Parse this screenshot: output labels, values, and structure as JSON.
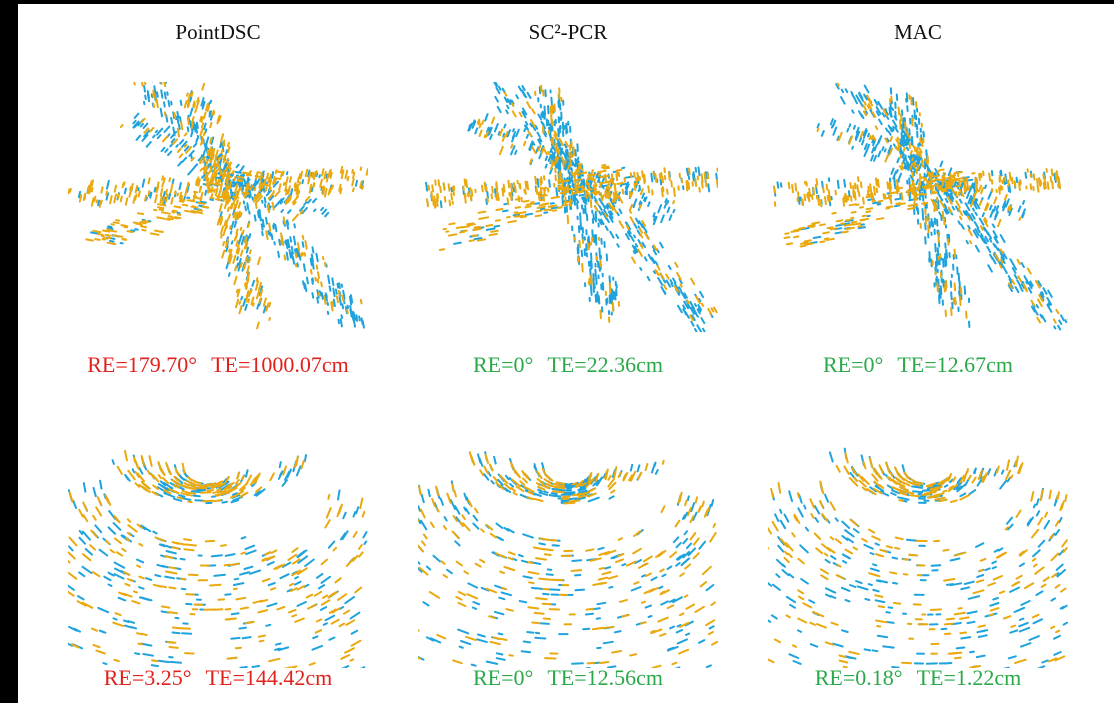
{
  "columns": [
    {
      "title": "PointDSC",
      "results": [
        {
          "re": "RE=179.70°",
          "te": "TE=1000.07cm"
        },
        {
          "re": "RE=3.25°",
          "te": "TE=144.42cm"
        }
      ]
    },
    {
      "title": "SC²-PCR",
      "results": [
        {
          "re": "RE=0°",
          "te": "TE=22.36cm"
        },
        {
          "re": "RE=0°",
          "te": "TE=12.56cm"
        }
      ]
    },
    {
      "title": "MAC",
      "results": [
        {
          "re": "RE=0°",
          "te": "TE=12.67cm"
        },
        {
          "re": "RE=0.18°",
          "te": "TE=1.22cm"
        }
      ]
    }
  ]
}
